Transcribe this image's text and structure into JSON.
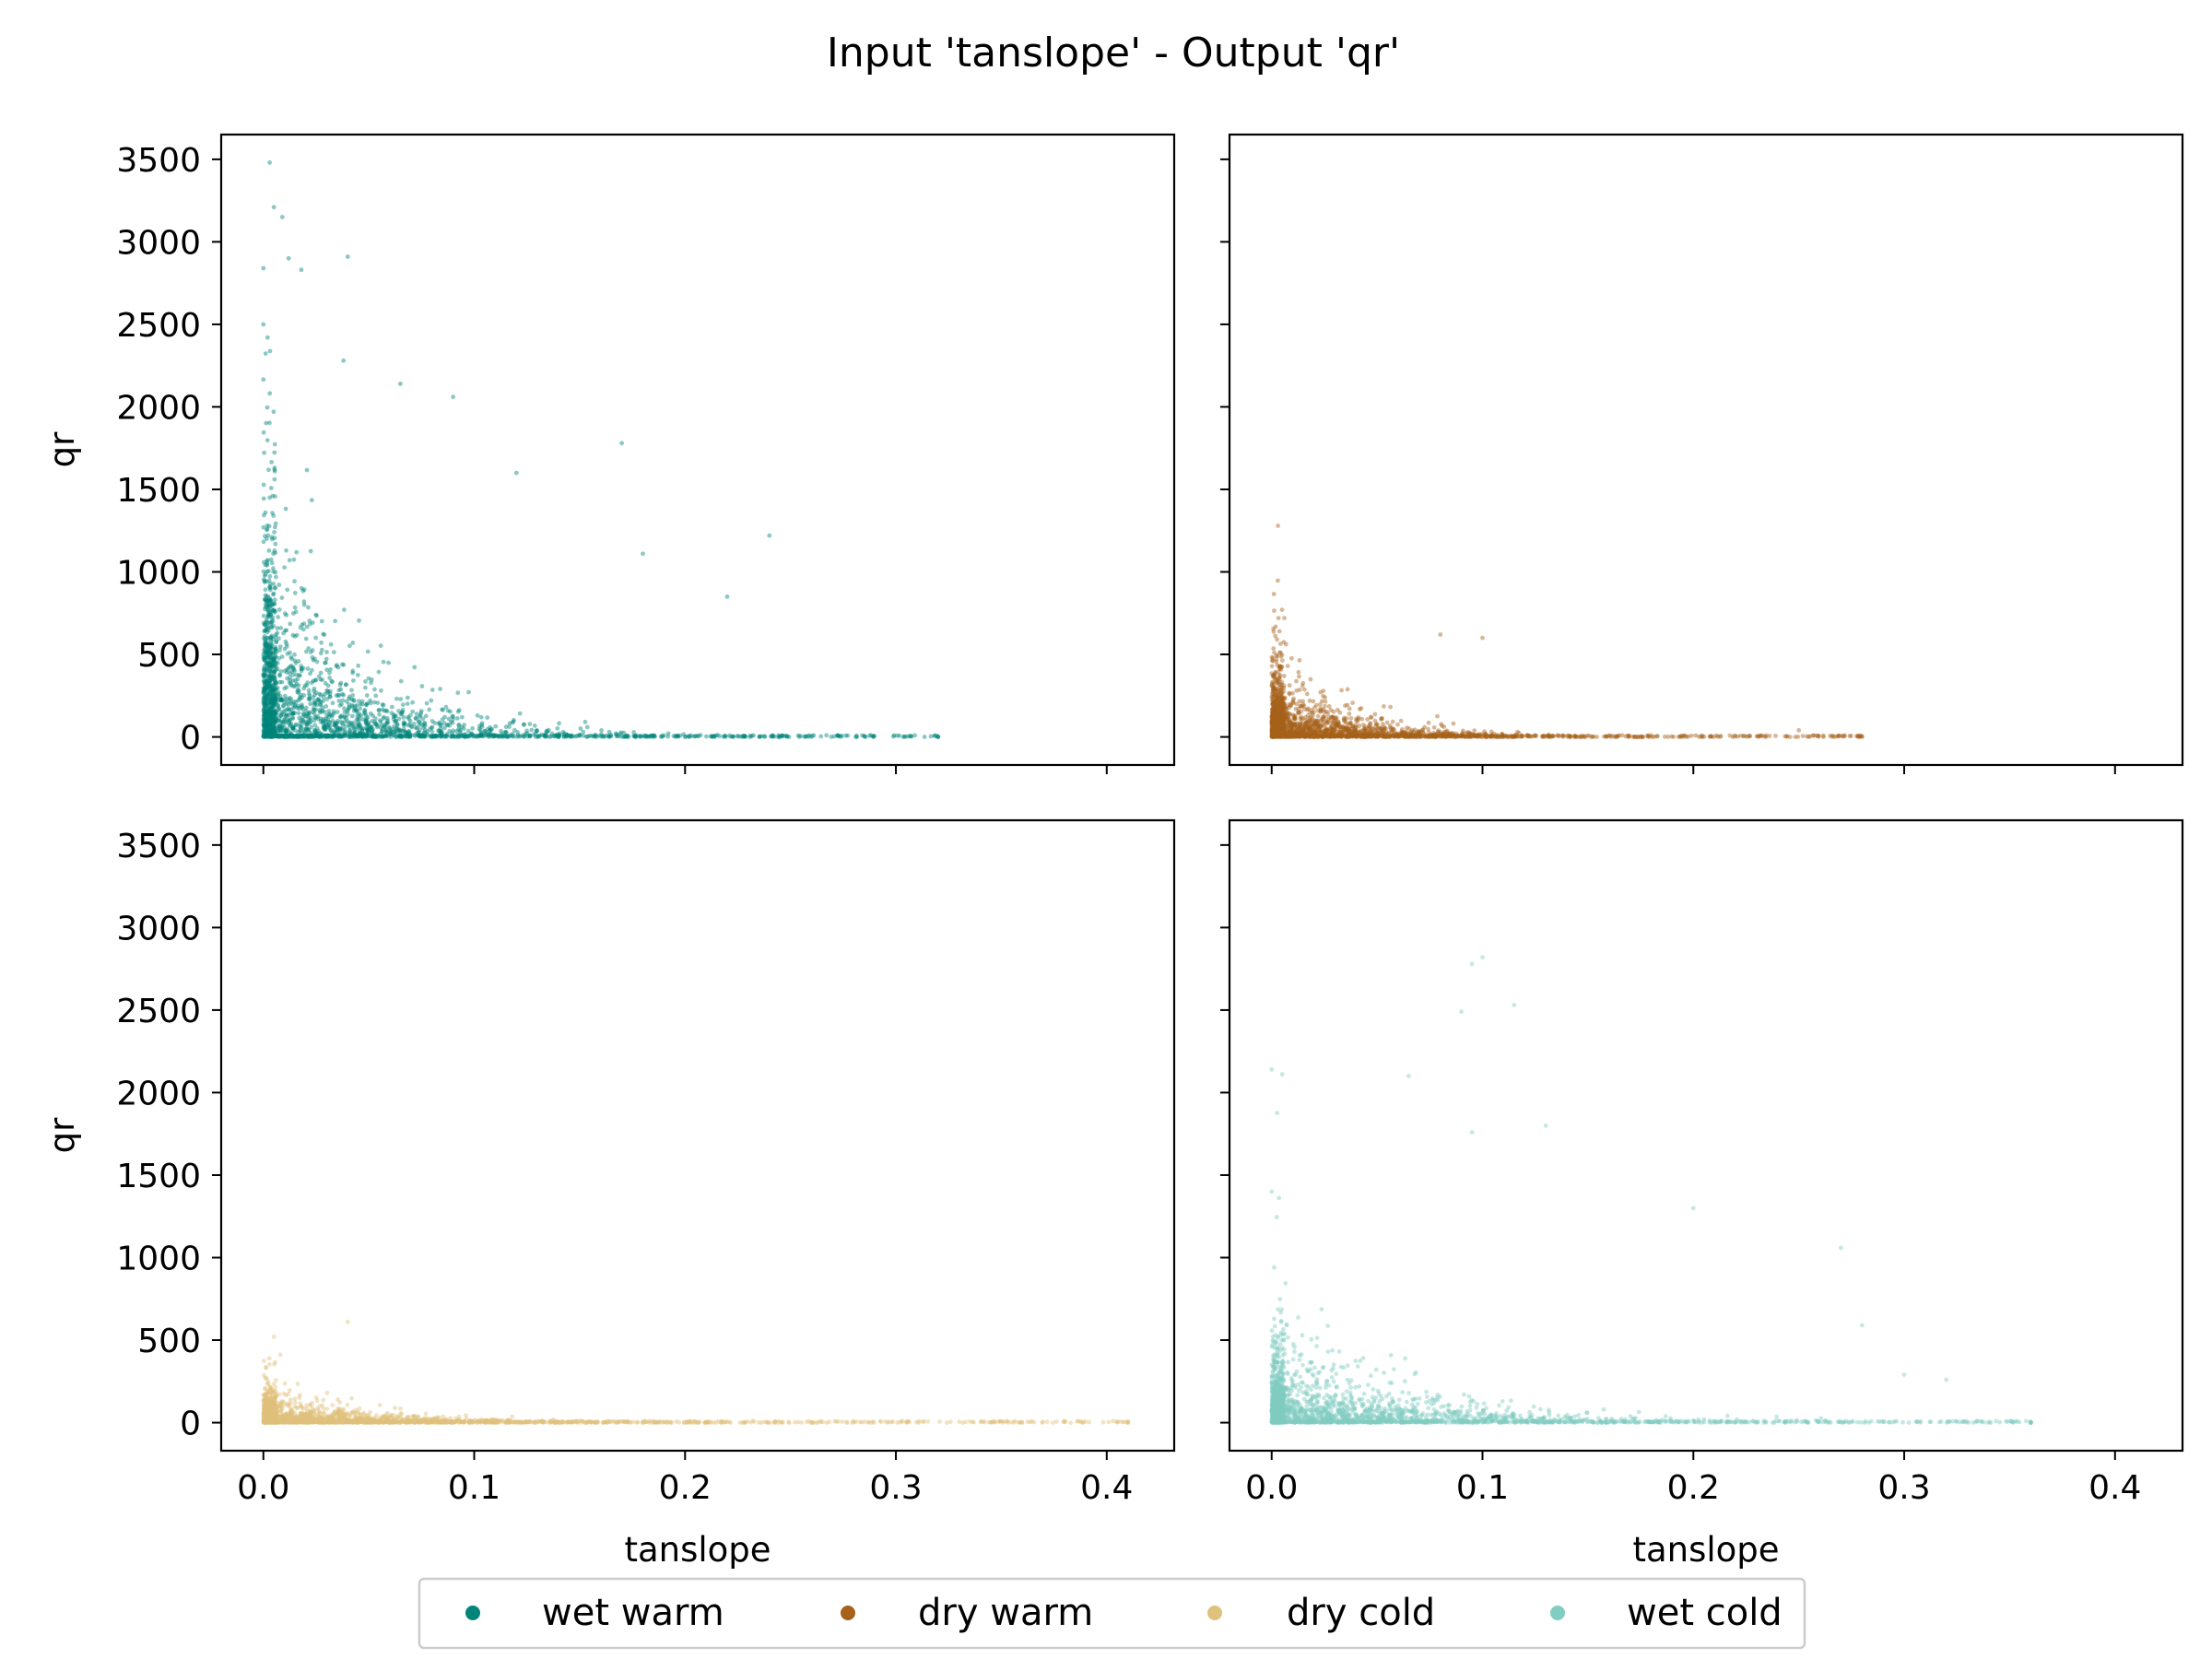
{
  "title": "Input 'tanslope' - Output 'qr'",
  "colors": {
    "wet_warm": "#01857a",
    "dry_warm": "#a6611a",
    "dry_cold": "#dfc27d",
    "wet_cold": "#80cdc1"
  },
  "legend": {
    "placement": "bottom-center",
    "items": [
      {
        "label": "wet warm",
        "color": "#01857a"
      },
      {
        "label": "dry warm",
        "color": "#a6611a"
      },
      {
        "label": "dry cold",
        "color": "#dfc27d"
      },
      {
        "label": "wet cold",
        "color": "#80cdc1"
      }
    ]
  },
  "chart_data": [
    {
      "type": "scatter",
      "series_name": "wet warm",
      "color": "#01857a",
      "xlabel": "",
      "ylabel": "qr",
      "xlim": [
        -0.02,
        0.432
      ],
      "ylim": [
        -170,
        3650
      ],
      "xticks": [
        0.0,
        0.1,
        0.2,
        0.3,
        0.4
      ],
      "xtick_labels": [],
      "yticks": [
        0,
        500,
        1000,
        1500,
        2000,
        2500,
        3000,
        3500
      ],
      "ytick_labels": [
        "0",
        "500",
        "1000",
        "1500",
        "2000",
        "2500",
        "3000",
        "3500"
      ],
      "spread": {
        "x_scale": 0.05,
        "y_scale": 380,
        "coupling": 1.6,
        "x_max": 0.32,
        "y_max": 3480
      },
      "outliers": [
        [
          0.003,
          3480
        ],
        [
          0.005,
          3210
        ],
        [
          0.009,
          3150
        ],
        [
          0.0,
          2840
        ],
        [
          0.012,
          2900
        ],
        [
          0.04,
          2910
        ],
        [
          0.018,
          2830
        ],
        [
          0.0,
          2500
        ],
        [
          0.002,
          2420
        ],
        [
          0.038,
          2280
        ],
        [
          0.065,
          2140
        ],
        [
          0.09,
          2060
        ],
        [
          0.17,
          1780
        ],
        [
          0.12,
          1600
        ],
        [
          0.24,
          1220
        ],
        [
          0.18,
          1110
        ],
        [
          0.22,
          850
        ]
      ]
    },
    {
      "type": "scatter",
      "series_name": "dry warm",
      "color": "#a6611a",
      "xlabel": "",
      "ylabel": "",
      "xlim": [
        -0.02,
        0.432
      ],
      "ylim": [
        -170,
        3650
      ],
      "xticks": [
        0.0,
        0.1,
        0.2,
        0.3,
        0.4
      ],
      "xtick_labels": [],
      "yticks": [
        0,
        500,
        1000,
        1500,
        2000,
        2500,
        3000,
        3500
      ],
      "ytick_labels": [],
      "spread": {
        "x_scale": 0.04,
        "y_scale": 120,
        "coupling": 1.8,
        "x_max": 0.28,
        "y_max": 720
      },
      "outliers": [
        [
          0.003,
          1280
        ],
        [
          0.006,
          720
        ],
        [
          0.1,
          600
        ],
        [
          0.08,
          620
        ],
        [
          0.25,
          40
        ],
        [
          0.28,
          5
        ]
      ]
    },
    {
      "type": "scatter",
      "series_name": "dry cold",
      "color": "#dfc27d",
      "xlabel": "tanslope",
      "ylabel": "qr",
      "xlim": [
        -0.02,
        0.432
      ],
      "ylim": [
        -170,
        3650
      ],
      "xticks": [
        0.0,
        0.1,
        0.2,
        0.3,
        0.4
      ],
      "xtick_labels": [
        "0.0",
        "0.1",
        "0.2",
        "0.3",
        "0.4"
      ],
      "yticks": [
        0,
        500,
        1000,
        1500,
        2000,
        2500,
        3000,
        3500
      ],
      "ytick_labels": [
        "0",
        "500",
        "1000",
        "1500",
        "2000",
        "2500",
        "3000",
        "3500"
      ],
      "spread": {
        "x_scale": 0.06,
        "y_scale": 60,
        "coupling": 2.0,
        "x_max": 0.41,
        "y_max": 620
      },
      "outliers": [
        [
          0.04,
          610
        ],
        [
          0.005,
          520
        ],
        [
          0.38,
          5
        ],
        [
          0.41,
          3
        ],
        [
          0.35,
          8
        ]
      ]
    },
    {
      "type": "scatter",
      "series_name": "wet cold",
      "color": "#80cdc1",
      "xlabel": "tanslope",
      "ylabel": "",
      "xlim": [
        -0.02,
        0.432
      ],
      "ylim": [
        -170,
        3650
      ],
      "xticks": [
        0.0,
        0.1,
        0.2,
        0.3,
        0.4
      ],
      "xtick_labels": [
        "0.0",
        "0.1",
        "0.2",
        "0.3",
        "0.4"
      ],
      "yticks": [
        0,
        500,
        1000,
        1500,
        2000,
        2500,
        3000,
        3500
      ],
      "ytick_labels": [],
      "spread": {
        "x_scale": 0.06,
        "y_scale": 150,
        "coupling": 1.2,
        "x_max": 0.36,
        "y_max": 2820
      },
      "outliers": [
        [
          0.1,
          2820
        ],
        [
          0.095,
          2780
        ],
        [
          0.115,
          2530
        ],
        [
          0.09,
          2490
        ],
        [
          0.0,
          2140
        ],
        [
          0.005,
          2110
        ],
        [
          0.0,
          1400
        ],
        [
          0.13,
          1800
        ],
        [
          0.095,
          1760
        ],
        [
          0.065,
          2100
        ],
        [
          0.27,
          1060
        ],
        [
          0.28,
          590
        ],
        [
          0.32,
          260
        ],
        [
          0.36,
          0
        ],
        [
          0.3,
          290
        ],
        [
          0.2,
          1300
        ]
      ]
    }
  ]
}
